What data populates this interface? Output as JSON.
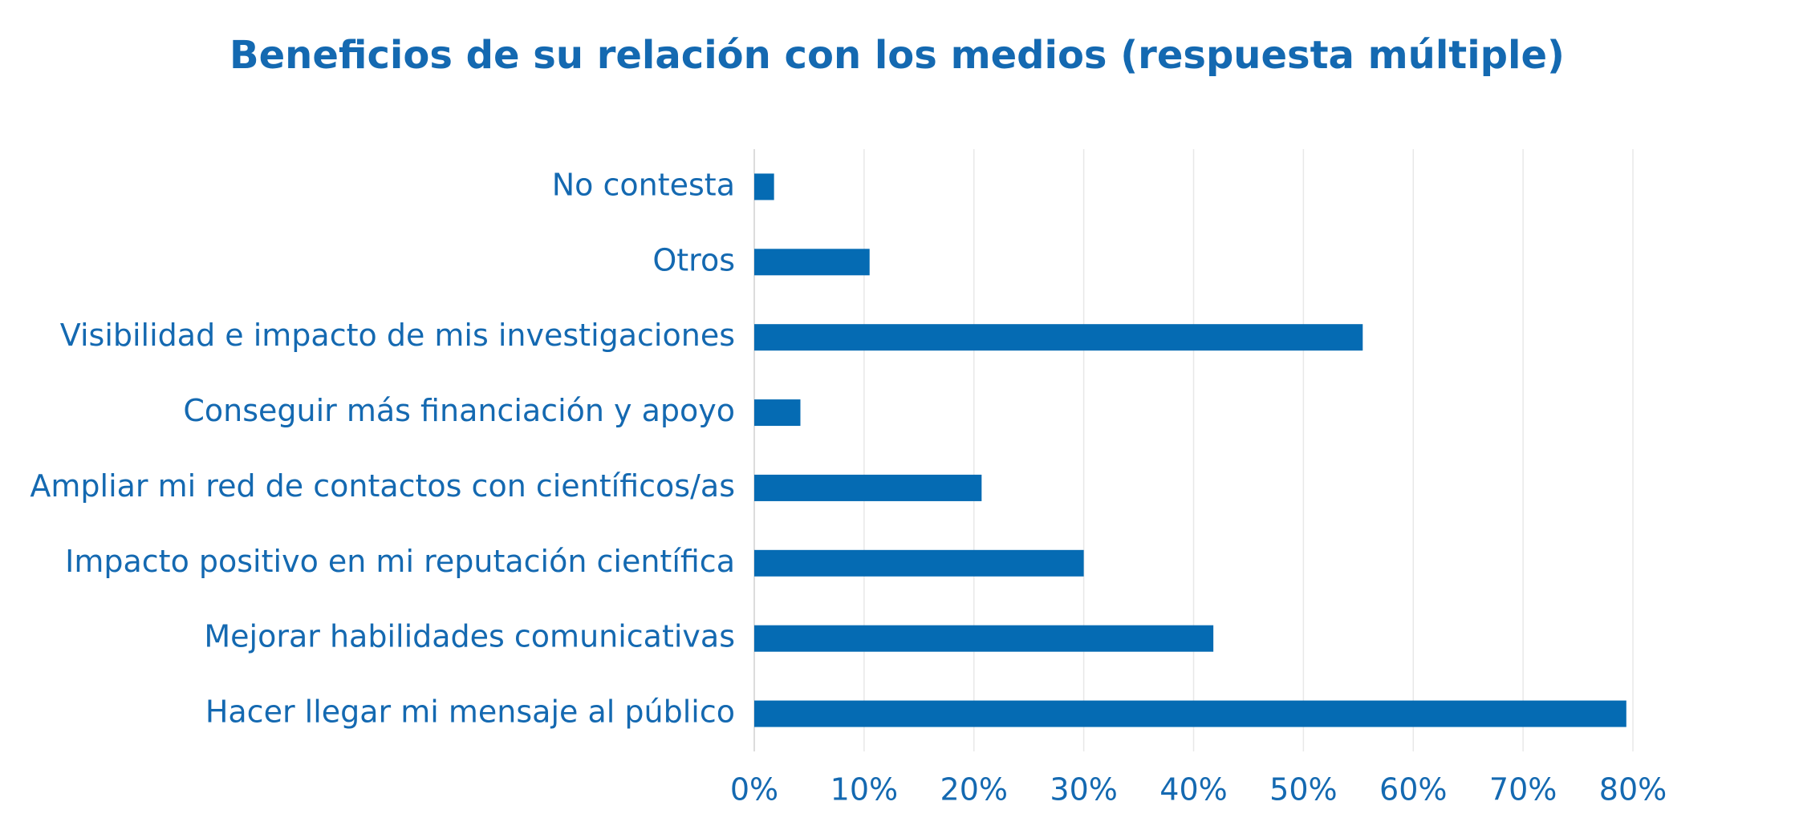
{
  "chart_data": {
    "type": "bar",
    "orientation": "horizontal",
    "title": "Beneficios de su relación con los medios (respuesta múltiple)",
    "categories": [
      "No contesta",
      "Otros",
      "Visibilidad e impacto de mis investigaciones",
      "Conseguir más financiación y apoyo",
      "Ampliar mi red de contactos con científicos/as",
      "Impacto positivo en mi reputación científica",
      "Mejorar habilidades comunicativas",
      "Hacer llegar mi mensaje al público"
    ],
    "values": [
      1.8,
      10.5,
      55.4,
      4.2,
      20.7,
      30.0,
      41.8,
      79.4
    ],
    "color": "#056bb3",
    "xlim": [
      0,
      80
    ],
    "xticks": [
      {
        "value": 0,
        "label": "0%"
      },
      {
        "value": 10,
        "label": "10%"
      },
      {
        "value": 20,
        "label": "20%"
      },
      {
        "value": 30,
        "label": "30%"
      },
      {
        "value": 40,
        "label": "40%"
      },
      {
        "value": 50,
        "label": "50%"
      },
      {
        "value": 60,
        "label": "60%"
      },
      {
        "value": 70,
        "label": "70%"
      },
      {
        "value": 80,
        "label": "80%"
      }
    ],
    "grid": true
  }
}
